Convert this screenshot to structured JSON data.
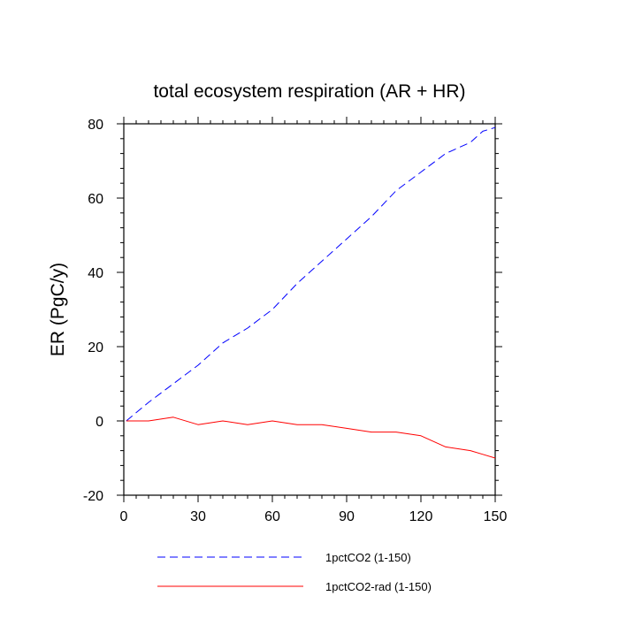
{
  "chart_data": {
    "type": "line",
    "title": "total ecosystem respiration (AR + HR)",
    "xlabel": "",
    "ylabel": "ER  (PgC/y)",
    "xlim": [
      0,
      150
    ],
    "ylim": [
      -20,
      80
    ],
    "x_ticks": [
      0,
      30,
      60,
      90,
      120,
      150
    ],
    "y_ticks": [
      -20,
      0,
      20,
      40,
      60,
      80
    ],
    "x_minor_step": 5,
    "y_minor_step": 4,
    "grid": false,
    "legend_position": "bottom",
    "x": [
      1,
      10,
      20,
      30,
      40,
      50,
      60,
      70,
      80,
      90,
      100,
      110,
      120,
      130,
      140,
      145,
      150
    ],
    "series": [
      {
        "name": "1pctCO2 (1-150)",
        "color": "#0000ff",
        "dash": "dashed",
        "values": [
          0,
          5,
          10,
          15,
          21,
          25,
          30,
          37,
          43,
          49,
          55,
          62,
          67,
          72,
          75,
          78,
          79
        ]
      },
      {
        "name": "1pctCO2-rad (1-150)",
        "color": "#ff0000",
        "dash": "solid",
        "values": [
          0,
          0,
          1,
          -1,
          0,
          -1,
          0,
          -1,
          -1,
          -2,
          -3,
          -3,
          -4,
          -7,
          -8,
          -9,
          -10
        ]
      }
    ]
  }
}
